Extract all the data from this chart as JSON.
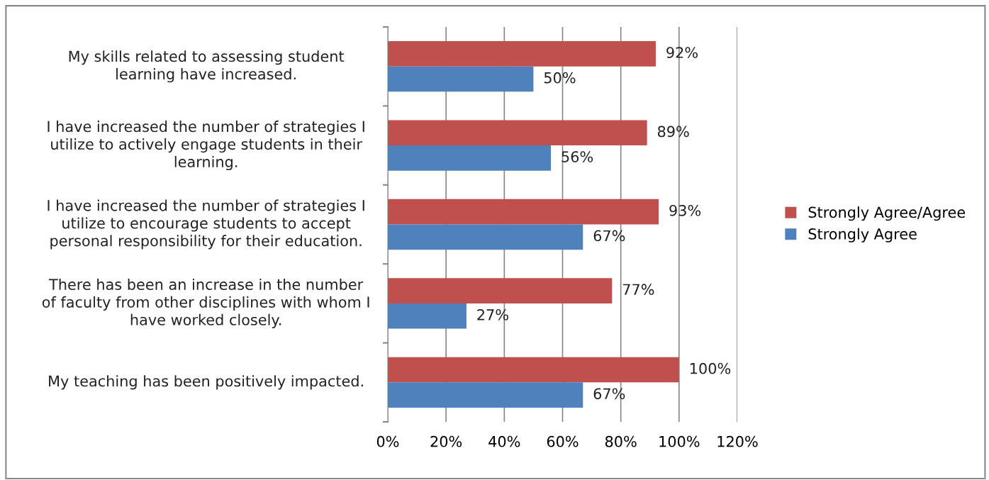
{
  "chart_data": {
    "type": "bar",
    "orientation": "horizontal",
    "categories": [
      "My skills related to assessing student learning have increased.",
      "I have increased the number of strategies I utilize to actively engage students in their learning.",
      "I have increased the number of strategies I utilize to encourage students to accept personal responsibility for their education.",
      "There has been an increase in the number of faculty from other disciplines with whom I have worked closely.",
      "My teaching has been positively impacted."
    ],
    "series": [
      {
        "name": "Strongly Agree/Agree",
        "color": "#c0504d",
        "values": [
          92,
          89,
          93,
          77,
          100
        ],
        "value_labels": [
          "92%",
          "89%",
          "93%",
          "77%",
          "100%"
        ]
      },
      {
        "name": "Strongly Agree",
        "color": "#4f81bd",
        "values": [
          50,
          56,
          67,
          27,
          67
        ],
        "value_labels": [
          "50%",
          "56%",
          "67%",
          "27%",
          "67%"
        ]
      }
    ],
    "xlim": [
      0,
      120
    ],
    "xticks": [
      {
        "value": 0,
        "label": "0%"
      },
      {
        "value": 20,
        "label": "20%"
      },
      {
        "value": 40,
        "label": "40%"
      },
      {
        "value": 60,
        "label": "60%"
      },
      {
        "value": 80,
        "label": "80%"
      },
      {
        "value": 100,
        "label": "100%"
      },
      {
        "value": 120,
        "label": "120%"
      }
    ],
    "grid": "x",
    "legend": "right"
  }
}
